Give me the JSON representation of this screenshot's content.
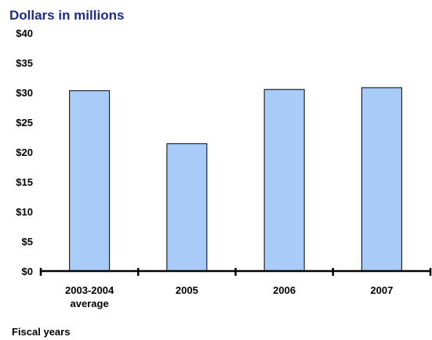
{
  "chart_data": {
    "type": "bar",
    "title": "Dollars in millions",
    "xlabel": "Fiscal years",
    "ylabel": "",
    "ylim": [
      0,
      40
    ],
    "y_ticks": [
      "$0",
      "$5",
      "$10",
      "$15",
      "$20",
      "$25",
      "$30",
      "$35",
      "$40"
    ],
    "categories": [
      [
        "2003-2004",
        "average"
      ],
      [
        "2005"
      ],
      [
        "2006"
      ],
      [
        "2007"
      ]
    ],
    "values": [
      30.3,
      21.4,
      30.5,
      30.8
    ],
    "grid": false,
    "legend": "none"
  },
  "colors": {
    "title": "#1c2c8c",
    "bar_fill": "#a8ccf7",
    "bar_stroke": "#000000",
    "axis": "#000000"
  }
}
